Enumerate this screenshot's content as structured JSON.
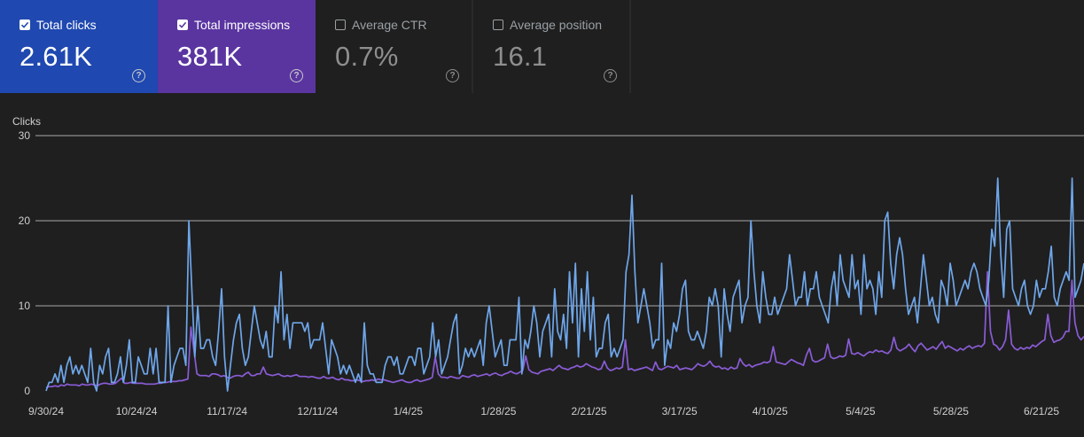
{
  "metrics": {
    "clicks": {
      "label": "Total clicks",
      "value": "2.61K",
      "checked": true
    },
    "impressions": {
      "label": "Total impressions",
      "value": "381K",
      "checked": true
    },
    "ctr": {
      "label": "Average CTR",
      "value": "0.7%",
      "checked": false
    },
    "position": {
      "label": "Average position",
      "value": "16.1",
      "checked": false
    },
    "help_glyph": "?"
  },
  "colors": {
    "clicks": "#6ea6ea",
    "impressions": "#8a5cd6",
    "clicks_card": "#1f48b0",
    "impressions_card": "#5a35a0"
  },
  "chart_data": {
    "type": "line",
    "ylabel": "Clicks",
    "ylim": [
      0,
      30
    ],
    "yticks": [
      "0",
      "10",
      "20",
      "30"
    ],
    "xticks": [
      "9/30/24",
      "10/24/24",
      "11/17/24",
      "12/11/24",
      "1/4/25",
      "1/28/25",
      "2/21/25",
      "3/17/25",
      "4/10/25",
      "5/4/25",
      "5/28/25",
      "6/21/25"
    ],
    "grid": true,
    "series": [
      {
        "name": "Total clicks",
        "values": [
          0,
          1,
          1,
          2,
          1,
          3,
          1,
          3,
          4,
          2,
          3,
          2,
          3,
          2,
          1,
          5,
          1,
          0,
          3,
          2,
          4,
          5,
          1,
          1,
          2,
          4,
          1,
          3,
          6,
          1,
          1,
          4,
          3,
          2,
          2,
          5,
          2,
          5,
          1,
          1,
          1,
          10,
          1,
          3,
          4,
          5,
          5,
          3,
          20,
          12,
          4,
          10,
          5,
          5,
          6,
          6,
          4,
          3,
          7,
          12,
          4,
          0,
          3,
          6,
          8,
          9,
          5,
          3,
          4,
          7,
          10,
          8,
          6,
          5,
          7,
          4,
          4,
          10,
          8,
          14,
          6,
          9,
          5,
          8,
          8,
          8,
          8,
          7,
          8,
          5,
          6,
          6,
          6,
          8,
          5,
          2,
          6,
          5,
          4,
          2,
          3,
          2,
          3,
          2,
          1,
          2,
          1,
          8,
          3,
          2,
          2,
          1,
          1,
          1,
          3,
          4,
          4,
          3,
          4,
          2,
          2,
          3,
          4,
          4,
          3,
          5,
          5,
          2,
          3,
          4,
          8,
          4,
          6,
          2,
          3,
          4,
          6,
          8,
          9,
          2,
          3,
          5,
          4,
          5,
          4,
          5,
          6,
          3,
          8,
          10,
          7,
          4,
          5,
          6,
          3,
          3,
          6,
          6,
          6,
          11,
          2,
          6,
          5,
          7,
          10,
          8,
          4,
          7,
          8,
          9,
          4,
          12,
          7,
          6,
          9,
          5,
          14,
          8,
          15,
          4,
          12,
          7,
          14,
          6,
          11,
          4,
          5,
          5,
          8,
          9,
          4,
          5,
          4,
          5,
          6,
          14,
          16,
          23,
          14,
          8,
          10,
          12,
          10,
          8,
          5,
          6,
          6,
          15,
          3,
          6,
          5,
          8,
          7,
          9,
          12,
          13,
          7,
          6,
          6,
          7,
          6,
          5,
          7,
          11,
          10,
          12,
          10,
          4,
          12,
          9,
          7,
          11,
          12,
          13,
          8,
          10,
          11,
          20,
          14,
          10,
          8,
          14,
          11,
          9,
          9,
          11,
          9,
          10,
          11,
          12,
          16,
          13,
          10,
          11,
          11,
          14,
          10,
          12,
          12,
          14,
          11,
          10,
          9,
          8,
          12,
          14,
          10,
          16,
          13,
          12,
          11,
          16,
          12,
          13,
          9,
          16,
          12,
          13,
          12,
          9,
          14,
          11,
          20,
          21,
          15,
          12,
          16,
          18,
          16,
          12,
          9,
          10,
          11,
          8,
          12,
          16,
          13,
          10,
          11,
          9,
          8,
          13,
          12,
          10,
          15,
          13,
          10,
          11,
          12,
          13,
          12,
          14,
          15,
          14,
          12,
          11,
          10,
          13,
          19,
          17,
          25,
          16,
          11,
          19,
          20,
          12,
          11,
          10,
          12,
          13,
          10,
          9,
          10,
          13,
          11,
          12,
          12,
          14,
          17,
          11,
          10,
          12,
          13,
          14,
          13,
          25,
          11,
          12,
          13,
          15
        ]
      },
      {
        "name": "Total impressions",
        "values": [
          0.4,
          0.5,
          0.5,
          0.6,
          0.5,
          0.7,
          0.6,
          0.8,
          0.7,
          0.7,
          0.7,
          0.6,
          0.8,
          0.7,
          0.7,
          0.8,
          0.7,
          0.6,
          0.8,
          0.9,
          0.9,
          0.8,
          0.8,
          0.9,
          1.2,
          1.5,
          0.9,
          0.9,
          1.0,
          0.9,
          0.9,
          0.9,
          0.9,
          0.8,
          0.8,
          0.8,
          0.8,
          0.9,
          0.9,
          1.0,
          1.0,
          1.1,
          1.1,
          1.1,
          1.2,
          1.2,
          1.3,
          1.4,
          7.5,
          4.8,
          2.0,
          1.8,
          1.8,
          1.8,
          1.7,
          2.0,
          2.0,
          1.9,
          1.7,
          1.8,
          1.6,
          1.5,
          1.7,
          1.8,
          1.8,
          1.7,
          2.0,
          2.2,
          1.8,
          1.8,
          2.0,
          2.0,
          2.8,
          2.0,
          1.9,
          1.8,
          1.9,
          2.0,
          1.8,
          1.7,
          1.8,
          1.7,
          1.8,
          1.9,
          1.7,
          1.7,
          1.7,
          1.6,
          1.7,
          1.6,
          1.5,
          1.5,
          1.7,
          1.5,
          1.5,
          1.6,
          1.4,
          1.3,
          1.5,
          1.3,
          1.3,
          1.2,
          1.2,
          1.3,
          1.2,
          1.1,
          1.2,
          1.2,
          1.3,
          1.2,
          1.4,
          1.3,
          1.3,
          1.2,
          1.1,
          1.0,
          1.1,
          1.2,
          1.3,
          1.1,
          1.0,
          1.0,
          1.2,
          1.3,
          1.1,
          1.2,
          1.3,
          1.4,
          1.6,
          4.0,
          2.0,
          1.6,
          1.6,
          1.5,
          1.7,
          1.6,
          1.5,
          1.5,
          1.8,
          1.7,
          1.6,
          1.8,
          1.9,
          1.7,
          1.8,
          1.9,
          2.0,
          1.8,
          2.0,
          2.1,
          1.9,
          1.8,
          2.0,
          2.1,
          2.3,
          2.1,
          2.0,
          2.2,
          2.4,
          4.1,
          2.5,
          2.2,
          2.1,
          2.0,
          2.3,
          2.4,
          2.5,
          2.6,
          2.4,
          2.7,
          3.0,
          2.7,
          2.6,
          2.5,
          2.7,
          2.8,
          3.0,
          2.8,
          2.9,
          3.2,
          3.0,
          2.8,
          2.7,
          2.5,
          2.6,
          3.5,
          2.7,
          2.4,
          2.5,
          2.7,
          2.6,
          2.8,
          6.0,
          2.5,
          2.6,
          2.4,
          2.5,
          2.6,
          2.7,
          2.8,
          2.6,
          2.4,
          3.4,
          2.6,
          2.5,
          2.7,
          2.9,
          2.8,
          2.7,
          3.0,
          2.5,
          2.6,
          2.7,
          2.6,
          2.5,
          2.8,
          3.2,
          3.0,
          2.9,
          3.1,
          3.5,
          3.0,
          2.8,
          2.9,
          2.6,
          2.7,
          2.5,
          2.8,
          2.6,
          2.7,
          3.8,
          3.2,
          2.9,
          3.1,
          2.8,
          3.0,
          3.1,
          3.2,
          3.4,
          3.3,
          3.5,
          5.2,
          3.4,
          3.3,
          3.2,
          3.1,
          3.4,
          3.7,
          3.5,
          3.3,
          3.2,
          3.0,
          4.2,
          5.0,
          3.6,
          3.4,
          3.5,
          3.7,
          3.9,
          5.5,
          4.0,
          3.8,
          3.9,
          4.1,
          4.0,
          4.2,
          6.1,
          4.4,
          4.3,
          4.5,
          4.3,
          4.1,
          4.4,
          4.6,
          4.5,
          4.8,
          4.6,
          4.7,
          4.5,
          4.4,
          4.8,
          6.3,
          5.0,
          4.7,
          4.9,
          5.1,
          5.5,
          5.0,
          4.6,
          5.3,
          5.6,
          5.2,
          4.8,
          5.0,
          5.2,
          4.9,
          5.4,
          5.8,
          5.0,
          5.3,
          5.1,
          4.9,
          4.7,
          5.0,
          4.8,
          5.1,
          5.3,
          5.0,
          5.2,
          5.3,
          5.2,
          5.6,
          14.0,
          7.0,
          5.5,
          5.3,
          4.8,
          5.2,
          6.0,
          9.5,
          5.5,
          5.0,
          4.8,
          5.1,
          4.9,
          5.1,
          5.0,
          5.4,
          5.2,
          5.5,
          5.8,
          6.0,
          9.0,
          6.5,
          5.7,
          5.9,
          6.0,
          6.3,
          7.0,
          7.0,
          13.0,
          8.0,
          6.5,
          6.0,
          6.4
        ]
      }
    ]
  }
}
